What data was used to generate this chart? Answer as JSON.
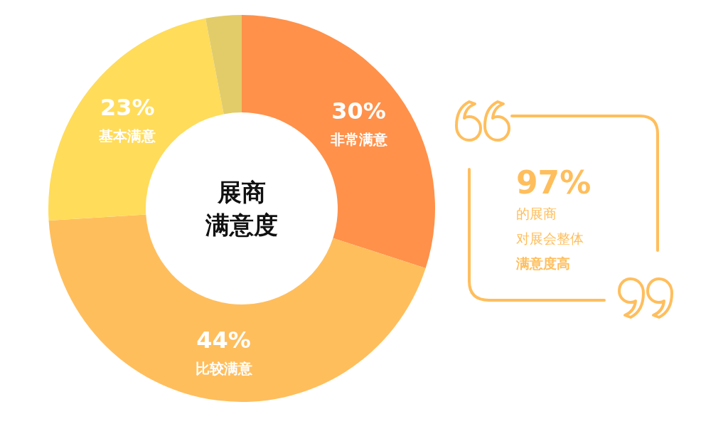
{
  "chart_data": {
    "type": "donut",
    "title": "展商满意度",
    "categories": [
      "非常满意",
      "比较满意",
      "基本满意",
      null
    ],
    "values": [
      30,
      44,
      23,
      3
    ],
    "colors": [
      "#ff914a",
      "#ffbe5c",
      "#ffdc5a",
      "#e2cc6a"
    ],
    "value_labels": [
      "30%",
      "44%",
      "23%",
      null
    ],
    "annotations": [
      "97%",
      "的展商",
      "对展会整体",
      "满意度高"
    ]
  }
}
